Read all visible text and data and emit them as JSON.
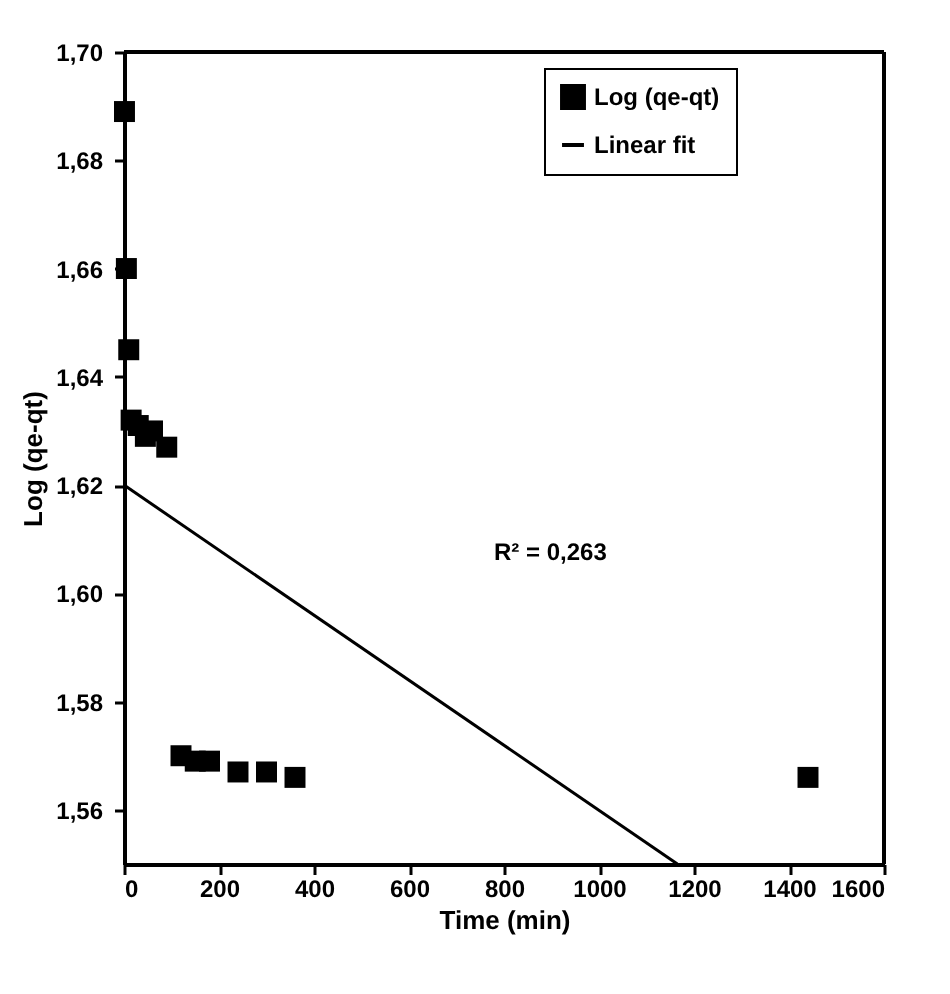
{
  "chart_data": {
    "type": "scatter",
    "xlabel": "Time (min)",
    "ylabel": "Log (qe-qt)",
    "xlim": [
      0,
      1600
    ],
    "xticks": [
      0,
      200,
      400,
      600,
      800,
      1000,
      1200,
      1400,
      1600
    ],
    "ylim": [
      1.55,
      1.7
    ],
    "yticks": [
      {
        "value": 1.56,
        "label": "1,56"
      },
      {
        "value": 1.58,
        "label": "1,58"
      },
      {
        "value": 1.6,
        "label": "1,60"
      },
      {
        "value": 1.62,
        "label": "1,62"
      },
      {
        "value": 1.64,
        "label": "1,64"
      },
      {
        "value": 1.66,
        "label": "1,66"
      },
      {
        "value": 1.68,
        "label": "1,68"
      },
      {
        "value": 1.7,
        "label": "1,70"
      }
    ],
    "grid": false,
    "legend": "top right",
    "series": [
      {
        "name": "Log (qe-qt)",
        "marker": "square",
        "color": "#000000",
        "x": [
          1,
          5,
          10,
          15,
          30,
          45,
          60,
          90,
          120,
          150,
          180,
          240,
          300,
          360,
          1440
        ],
        "values": [
          1.689,
          1.66,
          1.645,
          1.632,
          1.631,
          1.629,
          1.63,
          1.627,
          1.57,
          1.569,
          1.569,
          1.567,
          1.567,
          1.566,
          1.566
        ]
      },
      {
        "name": "Linear fit",
        "type": "line",
        "color": "#000000",
        "x": [
          0,
          1165
        ],
        "values": [
          1.62,
          1.55
        ]
      }
    ],
    "annotations": [
      "R² =  0,263"
    ]
  }
}
